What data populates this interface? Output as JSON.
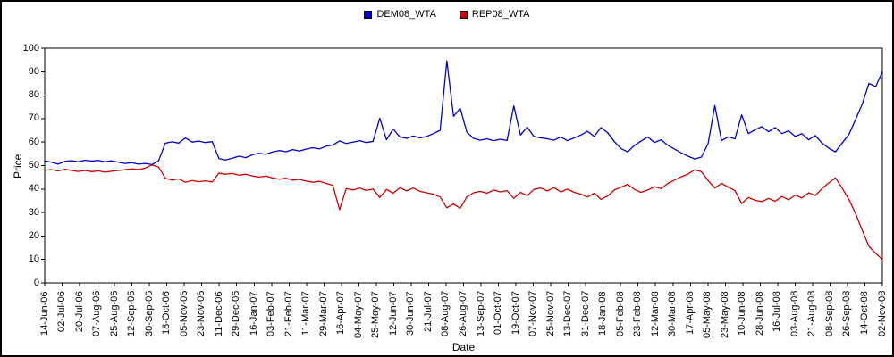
{
  "window": {
    "background": "#ffffff",
    "frame_border_color": "#000000",
    "axis_color": "#000000",
    "text_color": "#000000"
  },
  "chart_data": {
    "type": "line",
    "title": "",
    "xlabel": "Date",
    "ylabel": "Price",
    "ylim": [
      0,
      100
    ],
    "yticks": [
      0,
      10,
      20,
      30,
      40,
      50,
      60,
      70,
      80,
      90,
      100
    ],
    "grid": false,
    "legend_position": "top-center",
    "plot_background": "#ffffff",
    "categories": [
      "14-Jun-06",
      "02-Jul-06",
      "20-Jul-06",
      "07-Aug-06",
      "25-Aug-06",
      "12-Sep-06",
      "30-Sep-06",
      "18-Oct-06",
      "05-Nov-06",
      "23-Nov-06",
      "11-Dec-06",
      "29-Dec-06",
      "16-Jan-07",
      "03-Feb-07",
      "21-Feb-07",
      "11-Mar-07",
      "29-Mar-07",
      "16-Apr-07",
      "04-May-07",
      "25-May-07",
      "12-Jun-07",
      "30-Jun-07",
      "21-Jul-07",
      "08-Aug-07",
      "26-Aug-07",
      "13-Sep-07",
      "01-Oct-07",
      "19-Oct-07",
      "07-Nov-07",
      "25-Nov-07",
      "13-Dec-07",
      "31-Dec-07",
      "18-Jan-08",
      "05-Feb-08",
      "23-Feb-08",
      "12-Mar-08",
      "30-Mar-08",
      "17-Apr-08",
      "05-May-08",
      "23-May-08",
      "10-Jun-08",
      "28-Jun-08",
      "16-Jul-08",
      "03-Aug-08",
      "21-Aug-08",
      "08-Sep-08",
      "26-Sep-08",
      "14-Oct-08",
      "02-Nov-08"
    ],
    "points_per_series": 126,
    "series": [
      {
        "name": "DEM08_WTA",
        "color": "#0000cc",
        "values": [
          52.0,
          51.4,
          50.6,
          51.8,
          52.1,
          51.6,
          52.3,
          51.9,
          52.2,
          51.6,
          52.0,
          51.4,
          50.9,
          51.2,
          50.6,
          50.9,
          50.4,
          52.0,
          59.5,
          60.1,
          59.6,
          61.8,
          60.0,
          60.4,
          59.8,
          60.2,
          53.0,
          52.4,
          53.1,
          54.0,
          53.4,
          54.6,
          55.2,
          54.8,
          55.8,
          56.4,
          55.9,
          56.8,
          56.2,
          57.0,
          57.6,
          57.1,
          58.2,
          58.8,
          60.5,
          59.4,
          60.0,
          60.6,
          59.8,
          60.3,
          70.2,
          61.0,
          65.6,
          62.2,
          61.6,
          62.6,
          61.8,
          62.4,
          63.6,
          65.0,
          94.6,
          71.0,
          74.4,
          64.2,
          61.6,
          60.8,
          61.4,
          60.6,
          61.2,
          60.7,
          75.4,
          63.0,
          66.4,
          62.4,
          61.8,
          61.4,
          60.8,
          62.2,
          60.6,
          61.8,
          63.0,
          64.6,
          62.4,
          66.2,
          64.0,
          60.2,
          57.2,
          55.8,
          58.6,
          60.4,
          62.2,
          59.8,
          61.0,
          58.6,
          57.0,
          55.4,
          54.0,
          52.8,
          53.6,
          59.4,
          75.6,
          60.6,
          62.2,
          61.4,
          71.6,
          63.6,
          65.2,
          66.6,
          64.4,
          66.2,
          63.6,
          64.8,
          62.4,
          63.6,
          61.0,
          62.8,
          59.6,
          57.4,
          55.8,
          59.6,
          63.2,
          69.6,
          76.2,
          85.0,
          83.6,
          90.0
        ]
      },
      {
        "name": "REP08_WTA",
        "color": "#cc0000",
        "values": [
          48.0,
          48.3,
          47.7,
          48.4,
          47.9,
          47.5,
          47.9,
          47.4,
          47.7,
          47.2,
          47.6,
          47.9,
          48.2,
          48.6,
          48.3,
          48.9,
          50.3,
          49.4,
          44.6,
          43.8,
          44.3,
          42.9,
          43.6,
          43.1,
          43.5,
          43.0,
          46.8,
          46.3,
          46.6,
          45.9,
          46.3,
          45.6,
          45.1,
          45.5,
          44.7,
          44.2,
          44.6,
          43.8,
          44.1,
          43.4,
          42.9,
          43.3,
          42.4,
          41.6,
          31.2,
          40.2,
          39.6,
          40.4,
          39.4,
          40.0,
          36.4,
          39.8,
          38.2,
          40.6,
          39.2,
          40.4,
          39.0,
          38.4,
          37.8,
          36.6,
          32.0,
          33.6,
          31.8,
          36.6,
          38.4,
          39.0,
          38.2,
          39.6,
          38.8,
          39.3,
          36.0,
          38.6,
          37.2,
          39.8,
          40.4,
          39.2,
          40.6,
          38.8,
          40.0,
          38.6,
          37.8,
          36.6,
          38.2,
          35.6,
          37.0,
          39.6,
          40.8,
          42.0,
          39.8,
          38.6,
          39.6,
          41.0,
          40.2,
          42.4,
          43.8,
          45.2,
          46.4,
          48.2,
          47.4,
          43.6,
          40.4,
          42.4,
          40.8,
          39.4,
          33.8,
          36.4,
          35.2,
          34.6,
          36.0,
          34.8,
          36.8,
          35.4,
          37.4,
          36.2,
          38.4,
          37.2,
          40.2,
          42.6,
          44.8,
          40.4,
          35.6,
          29.6,
          22.4,
          15.6,
          12.6,
          10.0
        ]
      }
    ]
  }
}
